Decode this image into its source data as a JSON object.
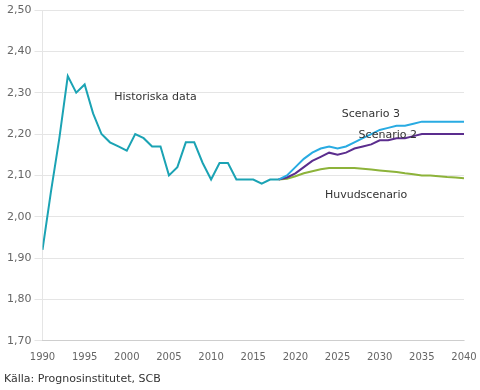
{
  "chart_data": {
    "type": "line",
    "x": [
      1990,
      1991,
      1992,
      1993,
      1994,
      1995,
      1996,
      1997,
      1998,
      1999,
      2000,
      2001,
      2002,
      2003,
      2004,
      2005,
      2006,
      2007,
      2008,
      2009,
      2010,
      2011,
      2012,
      2013,
      2014,
      2015,
      2016,
      2017,
      2018,
      2019,
      2020,
      2021,
      2022,
      2023,
      2024,
      2025,
      2026,
      2027,
      2028,
      2029,
      2030,
      2031,
      2032,
      2033,
      2034,
      2035,
      2036,
      2037,
      2038,
      2039,
      2040
    ],
    "series": [
      {
        "name": "Historiska data",
        "color": "#1BA3B4",
        "values": [
          1.92,
          2.06,
          2.19,
          2.34,
          2.3,
          2.32,
          2.25,
          2.2,
          2.18,
          2.17,
          2.16,
          2.2,
          2.19,
          2.17,
          2.17,
          2.1,
          2.12,
          2.18,
          2.18,
          2.13,
          2.09,
          2.13,
          2.13,
          2.09,
          2.09,
          2.09,
          2.08,
          2.09,
          2.09,
          null,
          null,
          null,
          null,
          null,
          null,
          null,
          null,
          null,
          null,
          null,
          null,
          null,
          null,
          null,
          null,
          null,
          null,
          null,
          null,
          null,
          null
        ]
      },
      {
        "name": "Scenario 3",
        "color": "#29ABE2",
        "values": [
          null,
          null,
          null,
          null,
          null,
          null,
          null,
          null,
          null,
          null,
          null,
          null,
          null,
          null,
          null,
          null,
          null,
          null,
          null,
          null,
          null,
          null,
          null,
          null,
          null,
          null,
          null,
          null,
          2.09,
          2.1,
          2.12,
          2.14,
          2.155,
          2.165,
          2.17,
          2.165,
          2.17,
          2.18,
          2.19,
          2.2,
          2.21,
          2.215,
          2.22,
          2.22,
          2.225,
          2.23,
          2.23,
          2.23,
          2.23,
          2.23,
          2.23
        ]
      },
      {
        "name": "Scenario 2",
        "color": "#5B2D8E",
        "values": [
          null,
          null,
          null,
          null,
          null,
          null,
          null,
          null,
          null,
          null,
          null,
          null,
          null,
          null,
          null,
          null,
          null,
          null,
          null,
          null,
          null,
          null,
          null,
          null,
          null,
          null,
          null,
          null,
          2.09,
          2.095,
          2.105,
          2.12,
          2.135,
          2.145,
          2.155,
          2.15,
          2.155,
          2.165,
          2.17,
          2.175,
          2.185,
          2.185,
          2.19,
          2.19,
          2.195,
          2.2,
          2.2,
          2.2,
          2.2,
          2.2,
          2.2
        ]
      },
      {
        "name": "Huvudscenario",
        "color": "#8DB33A",
        "values": [
          null,
          null,
          null,
          null,
          null,
          null,
          null,
          null,
          null,
          null,
          null,
          null,
          null,
          null,
          null,
          null,
          null,
          null,
          null,
          null,
          null,
          null,
          null,
          null,
          null,
          null,
          null,
          null,
          2.09,
          2.092,
          2.098,
          2.105,
          2.11,
          2.115,
          2.118,
          2.118,
          2.118,
          2.118,
          2.116,
          2.114,
          2.112,
          2.11,
          2.108,
          2.105,
          2.103,
          2.1,
          2.1,
          2.098,
          2.096,
          2.095,
          2.093
        ]
      }
    ],
    "xlim": [
      1990,
      2040
    ],
    "xticks": [
      1990,
      1995,
      2000,
      2005,
      2010,
      2015,
      2020,
      2025,
      2030,
      2035,
      2040
    ],
    "ylim": [
      1.7,
      2.5
    ],
    "yticks": [
      {
        "value": 1.7,
        "label": "1,70"
      },
      {
        "value": 1.8,
        "label": "1,80"
      },
      {
        "value": 1.9,
        "label": "1,90"
      },
      {
        "value": 2.0,
        "label": "2,00"
      },
      {
        "value": 2.1,
        "label": "2,10"
      },
      {
        "value": 2.2,
        "label": "2,20"
      },
      {
        "value": 2.3,
        "label": "2,30"
      },
      {
        "value": 2.4,
        "label": "2,40"
      },
      {
        "value": 2.5,
        "label": "2,50"
      }
    ],
    "grid": "y",
    "annotations": [
      {
        "text": "Historiska data",
        "x": 1998.5,
        "y": 2.275
      },
      {
        "text": "Scenario 3",
        "x": 2025.5,
        "y": 2.235
      },
      {
        "text": "Scenario 2",
        "x": 2027.5,
        "y": 2.185
      },
      {
        "text": "Huvudscenario",
        "x": 2023.5,
        "y": 2.04
      }
    ],
    "source": "Källa: Prognosinstitutet, SCB"
  }
}
